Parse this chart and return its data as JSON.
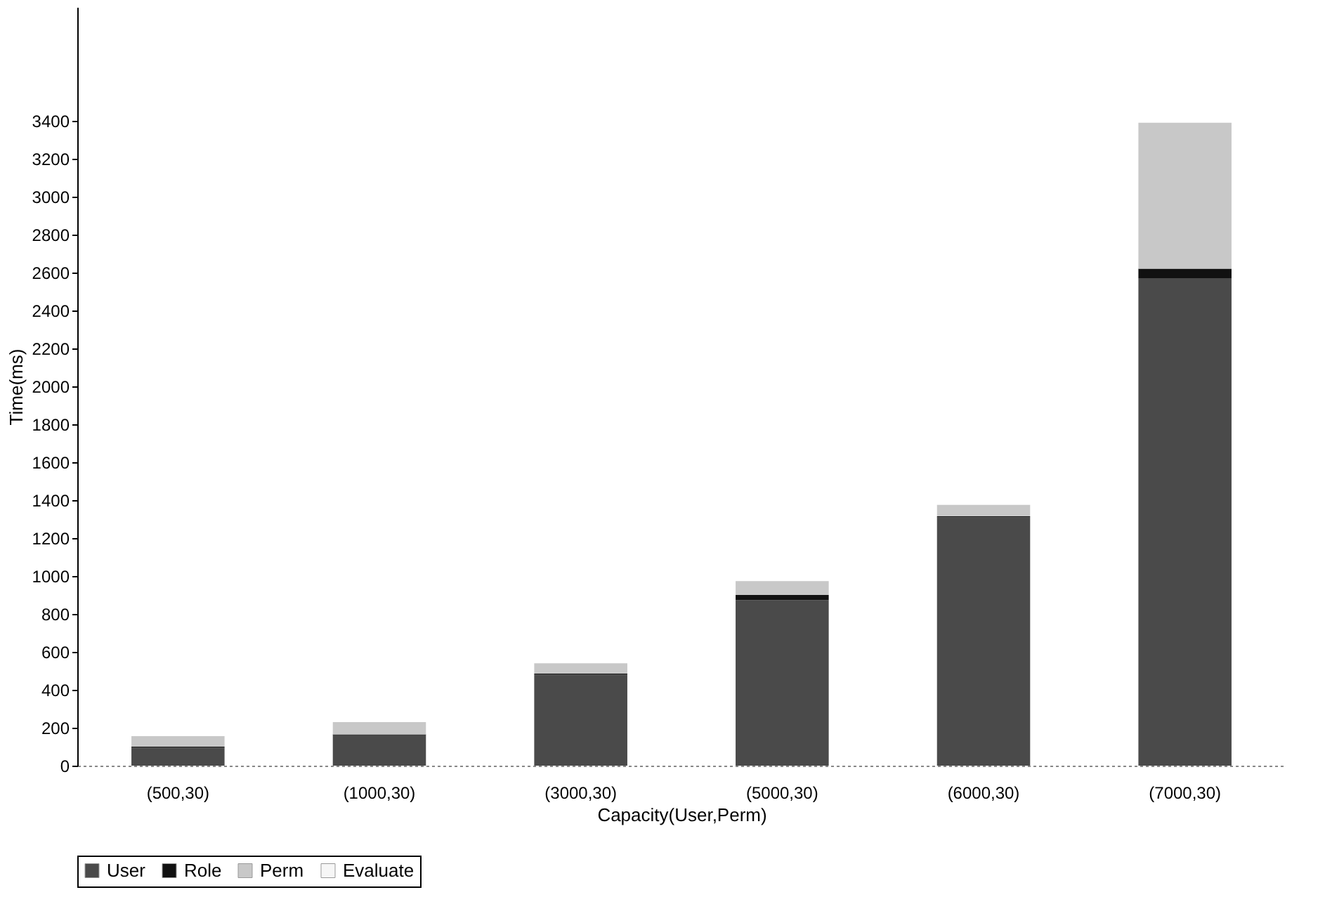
{
  "chart_data": {
    "type": "bar",
    "stacked": true,
    "xlabel": "Capacity(User,Perm)",
    "ylabel": "Time(ms)",
    "categories": [
      "(500,30)",
      "(1000,30)",
      "(3000,30)",
      "(5000,30)",
      "(6000,30)",
      "(7000,30)"
    ],
    "series": [
      {
        "name": "User",
        "color": "#4a4a4a",
        "values": [
          95,
          160,
          480,
          873,
          1310,
          2570
        ]
      },
      {
        "name": "Role",
        "color": "#111111",
        "values": [
          5,
          5,
          5,
          27,
          5,
          50
        ]
      },
      {
        "name": "Perm",
        "color": "#c8c8c8",
        "values": [
          56,
          65,
          55,
          73,
          60,
          770
        ]
      },
      {
        "name": "Evaluate",
        "color": "#f6f6f6",
        "values": [
          0,
          0,
          0,
          0,
          0,
          0
        ]
      }
    ],
    "ylim": [
      0,
      4000
    ],
    "yticks": [
      0,
      200,
      400,
      600,
      800,
      1000,
      1200,
      1400,
      1600,
      1800,
      2000,
      2200,
      2400,
      2600,
      2800,
      3000,
      3200,
      3400
    ],
    "grid": false,
    "legend": "bottom"
  }
}
